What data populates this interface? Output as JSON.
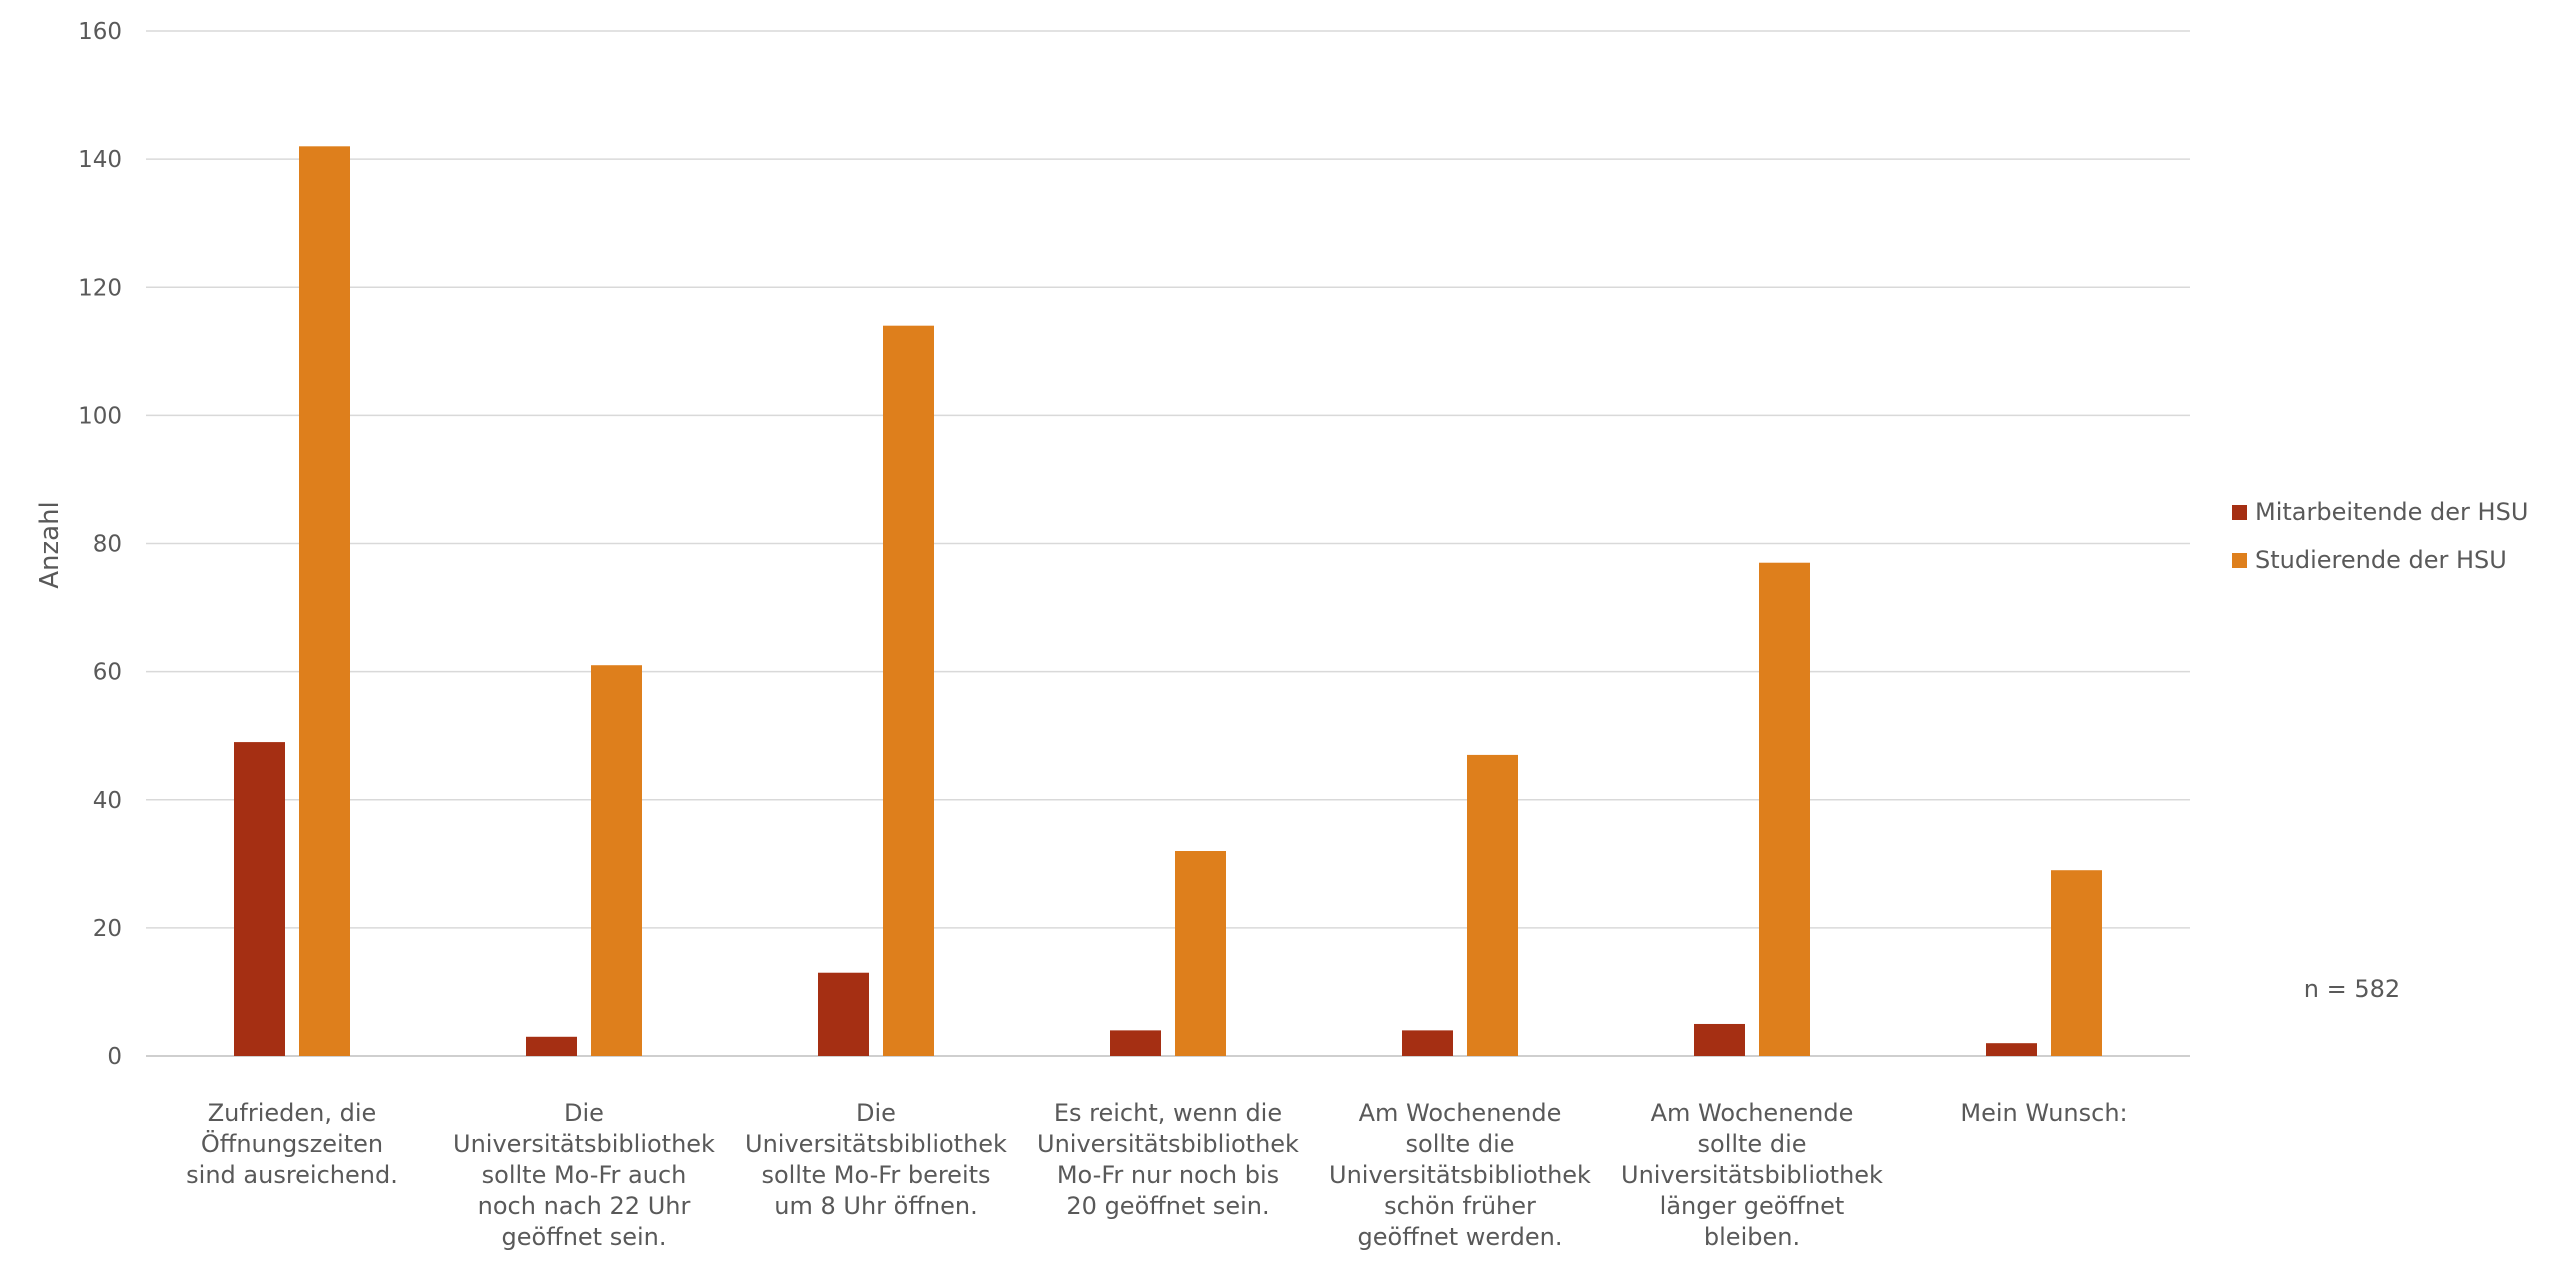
{
  "chart_data": {
    "type": "bar",
    "title": "",
    "xlabel": "",
    "ylabel": "Anzahl",
    "ylim": [
      0,
      160
    ],
    "yticks": [
      0,
      20,
      40,
      60,
      80,
      100,
      120,
      140,
      160
    ],
    "grid": true,
    "legend_position": "right",
    "categories": [
      "Zufrieden, die Öffnungszeiten sind ausreichend.",
      "Die Universitätsbibliothek sollte Mo-Fr auch noch nach 22 Uhr geöffnet sein.",
      "Die Universitätsbibliothek sollte Mo-Fr bereits um 8 Uhr öffnen.",
      "Es reicht, wenn die Universitätsbibliothek Mo-Fr nur noch bis 20 geöffnet sein.",
      "Am Wochenende sollte die Universitätsbibliothek schön früher geöffnet werden.",
      "Am Wochenende sollte die Universitätsbibliothek länger geöffnet bleiben.",
      "Mein Wunsch:"
    ],
    "category_lines": [
      [
        "Zufrieden, die",
        "Öffnungszeiten",
        "sind ausreichend."
      ],
      [
        "Die",
        "Universitätsbibliothek",
        "sollte Mo-Fr auch",
        "noch nach 22 Uhr",
        "geöffnet sein."
      ],
      [
        "Die",
        "Universitätsbibliothek",
        "sollte Mo-Fr bereits",
        "um 8 Uhr öffnen."
      ],
      [
        "Es reicht, wenn die",
        "Universitätsbibliothek",
        "Mo-Fr nur noch bis",
        "20 geöffnet sein."
      ],
      [
        "Am Wochenende",
        "sollte die",
        "Universitätsbibliothek",
        "schön früher",
        "geöffnet werden."
      ],
      [
        "Am Wochenende",
        "sollte die",
        "Universitätsbibliothek",
        "länger geöffnet",
        "bleiben."
      ],
      [
        "Mein Wunsch:"
      ]
    ],
    "series": [
      {
        "name": "Mitarbeitende der HSU",
        "color": "#A52F13",
        "values": [
          49,
          3,
          13,
          4,
          4,
          5,
          2
        ]
      },
      {
        "name": "Studierende der HSU",
        "color": "#DE7F1C",
        "values": [
          142,
          61,
          114,
          32,
          47,
          77,
          29
        ]
      }
    ],
    "annotation": "n = 582"
  }
}
